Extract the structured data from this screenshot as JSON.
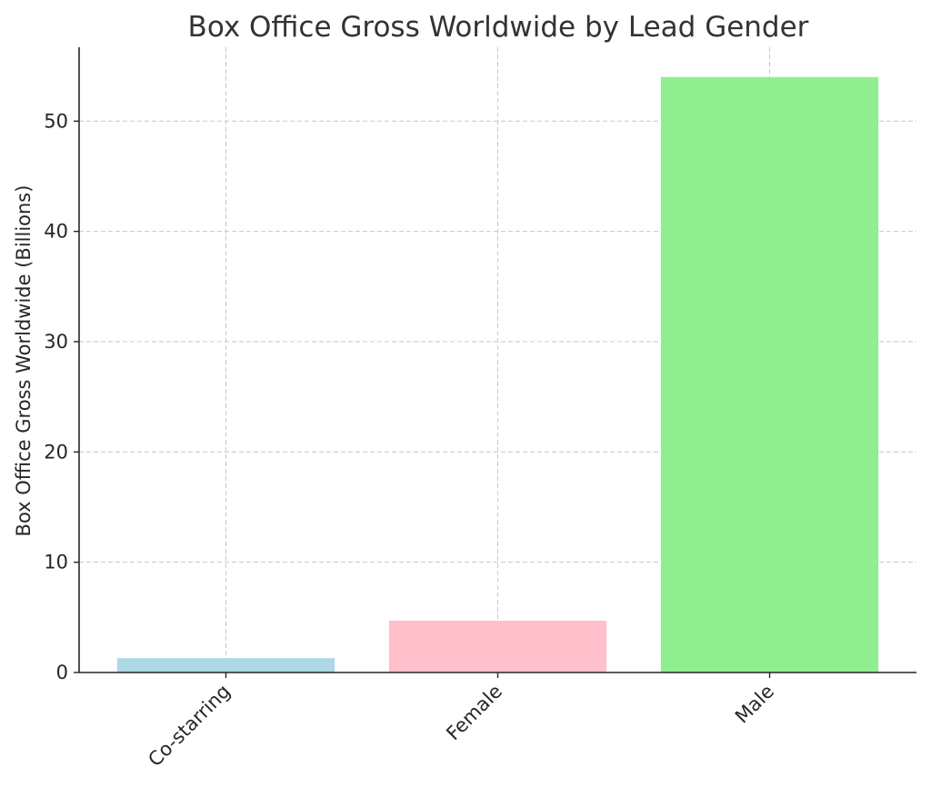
{
  "chart_data": {
    "type": "bar",
    "title": "Box Office Gross Worldwide by Lead Gender",
    "xlabel": "",
    "ylabel": "Box Office Gross Worldwide (Billions)",
    "categories": [
      "Co-starring",
      "Female",
      "Male"
    ],
    "values": [
      1.3,
      4.7,
      54.0
    ],
    "colors": [
      "#add8e6",
      "#ffc0cb",
      "#90ee90"
    ],
    "ylim": [
      0,
      56.7
    ],
    "yticks": [
      0,
      10,
      20,
      30,
      40,
      50
    ],
    "grid": true,
    "x_tick_rotation": "45 degrees"
  }
}
